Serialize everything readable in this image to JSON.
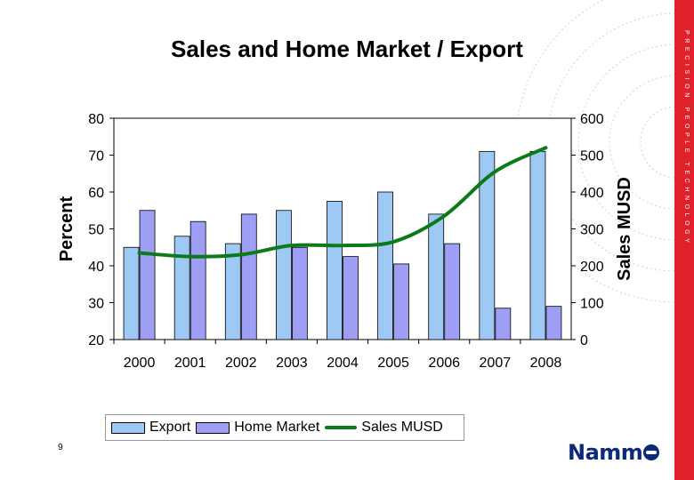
{
  "slide": {
    "title": "Sales and Home Market / Export",
    "page_number": "9",
    "tagline": "PRECISION PEOPLE TECHNOLOGY",
    "logo_text": "Namm"
  },
  "colors": {
    "export": "#9ec9f5",
    "home_market": "#9e9ef5",
    "sales": "#0a7a1a",
    "accent_red": "#e0202a",
    "logo_blue": "#0d2a7a"
  },
  "chart_data": {
    "type": "bar",
    "title": "Sales and Home Market / Export",
    "categories": [
      "2000",
      "2001",
      "2002",
      "2003",
      "2004",
      "2005",
      "2006",
      "2007",
      "2008"
    ],
    "series": [
      {
        "name": "Export",
        "kind": "bar",
        "axis": "left",
        "values": [
          45,
          48,
          46,
          55,
          57.5,
          60,
          54,
          71,
          71
        ]
      },
      {
        "name": "Home Market",
        "kind": "bar",
        "axis": "left",
        "values": [
          55,
          52,
          54,
          45,
          42.5,
          40.5,
          46,
          28.5,
          29
        ]
      },
      {
        "name": "Sales MUSD",
        "kind": "line",
        "axis": "right",
        "values": [
          235,
          225,
          230,
          255,
          255,
          265,
          335,
          455,
          520
        ]
      }
    ],
    "ylabel": "Percent",
    "y2label": "Sales MUSD",
    "ylim": [
      20,
      80
    ],
    "y2lim": [
      0,
      600
    ],
    "yticks": [
      "80",
      "70",
      "60",
      "50",
      "40",
      "30",
      "20"
    ],
    "y2ticks": [
      "600",
      "500",
      "400",
      "300",
      "200",
      "100",
      "0"
    ],
    "legend": [
      "Export",
      "Home Market",
      "Sales MUSD"
    ],
    "legend_position": "bottom"
  }
}
